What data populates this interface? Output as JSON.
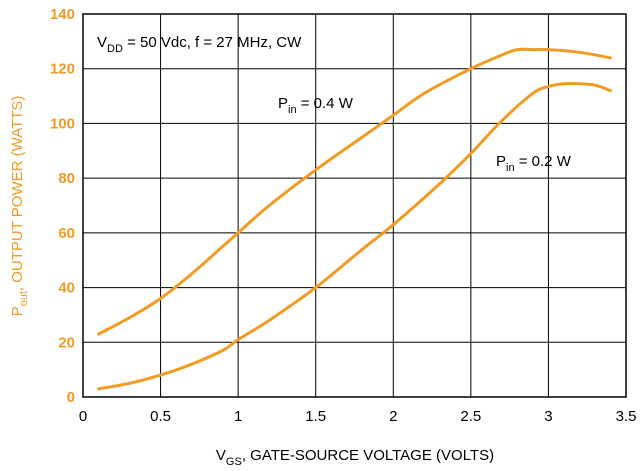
{
  "chart_data": {
    "type": "line",
    "annotation": {
      "vdd_main": "V",
      "vdd_sub": "DD",
      "vdd_rest": " = 50 Vdc, f = 27 MHz, CW"
    },
    "xlabel": {
      "main": "V",
      "sub": "GS",
      "rest": ", GATE-SOURCE VOLTAGE (VOLTS)"
    },
    "ylabel": {
      "main": "P",
      "sub": "out",
      "rest": ", OUTPUT POWER (WATTS)"
    },
    "xlim": [
      0,
      3.5
    ],
    "ylim": [
      0,
      140
    ],
    "x_ticks": [
      "0",
      "0.5",
      "1",
      "1.5",
      "2",
      "2.5",
      "3",
      "3.5"
    ],
    "y_ticks": [
      "0",
      "20",
      "40",
      "60",
      "80",
      "100",
      "120",
      "140"
    ],
    "grid": true,
    "series": [
      {
        "label_main": "P",
        "label_sub": "in",
        "label_rest": " = 0.4 W",
        "x": [
          0.1,
          0.3,
          0.5,
          0.7,
          0.9,
          1.0,
          1.2,
          1.5,
          1.8,
          2.0,
          2.2,
          2.5,
          2.7,
          2.8,
          2.9,
          3.0,
          3.2,
          3.4
        ],
        "y": [
          23,
          29,
          36,
          45,
          55,
          60,
          70,
          83,
          95,
          103,
          111,
          120,
          125,
          127,
          127,
          127,
          126,
          124
        ]
      },
      {
        "label_main": "P",
        "label_sub": "in",
        "label_rest": " = 0.2 W",
        "x": [
          0.1,
          0.3,
          0.5,
          0.7,
          0.9,
          1.0,
          1.2,
          1.5,
          1.8,
          2.0,
          2.3,
          2.5,
          2.7,
          2.9,
          3.0,
          3.1,
          3.2,
          3.3,
          3.4
        ],
        "y": [
          3,
          5,
          8,
          12,
          17,
          21,
          28,
          40,
          54,
          63,
          78,
          89,
          101,
          111,
          113.5,
          114.5,
          114.5,
          114,
          112
        ]
      }
    ],
    "colors": {
      "curve": "#f29a22",
      "axis_labels_y": "#f29a22",
      "grid": "#000000"
    }
  }
}
